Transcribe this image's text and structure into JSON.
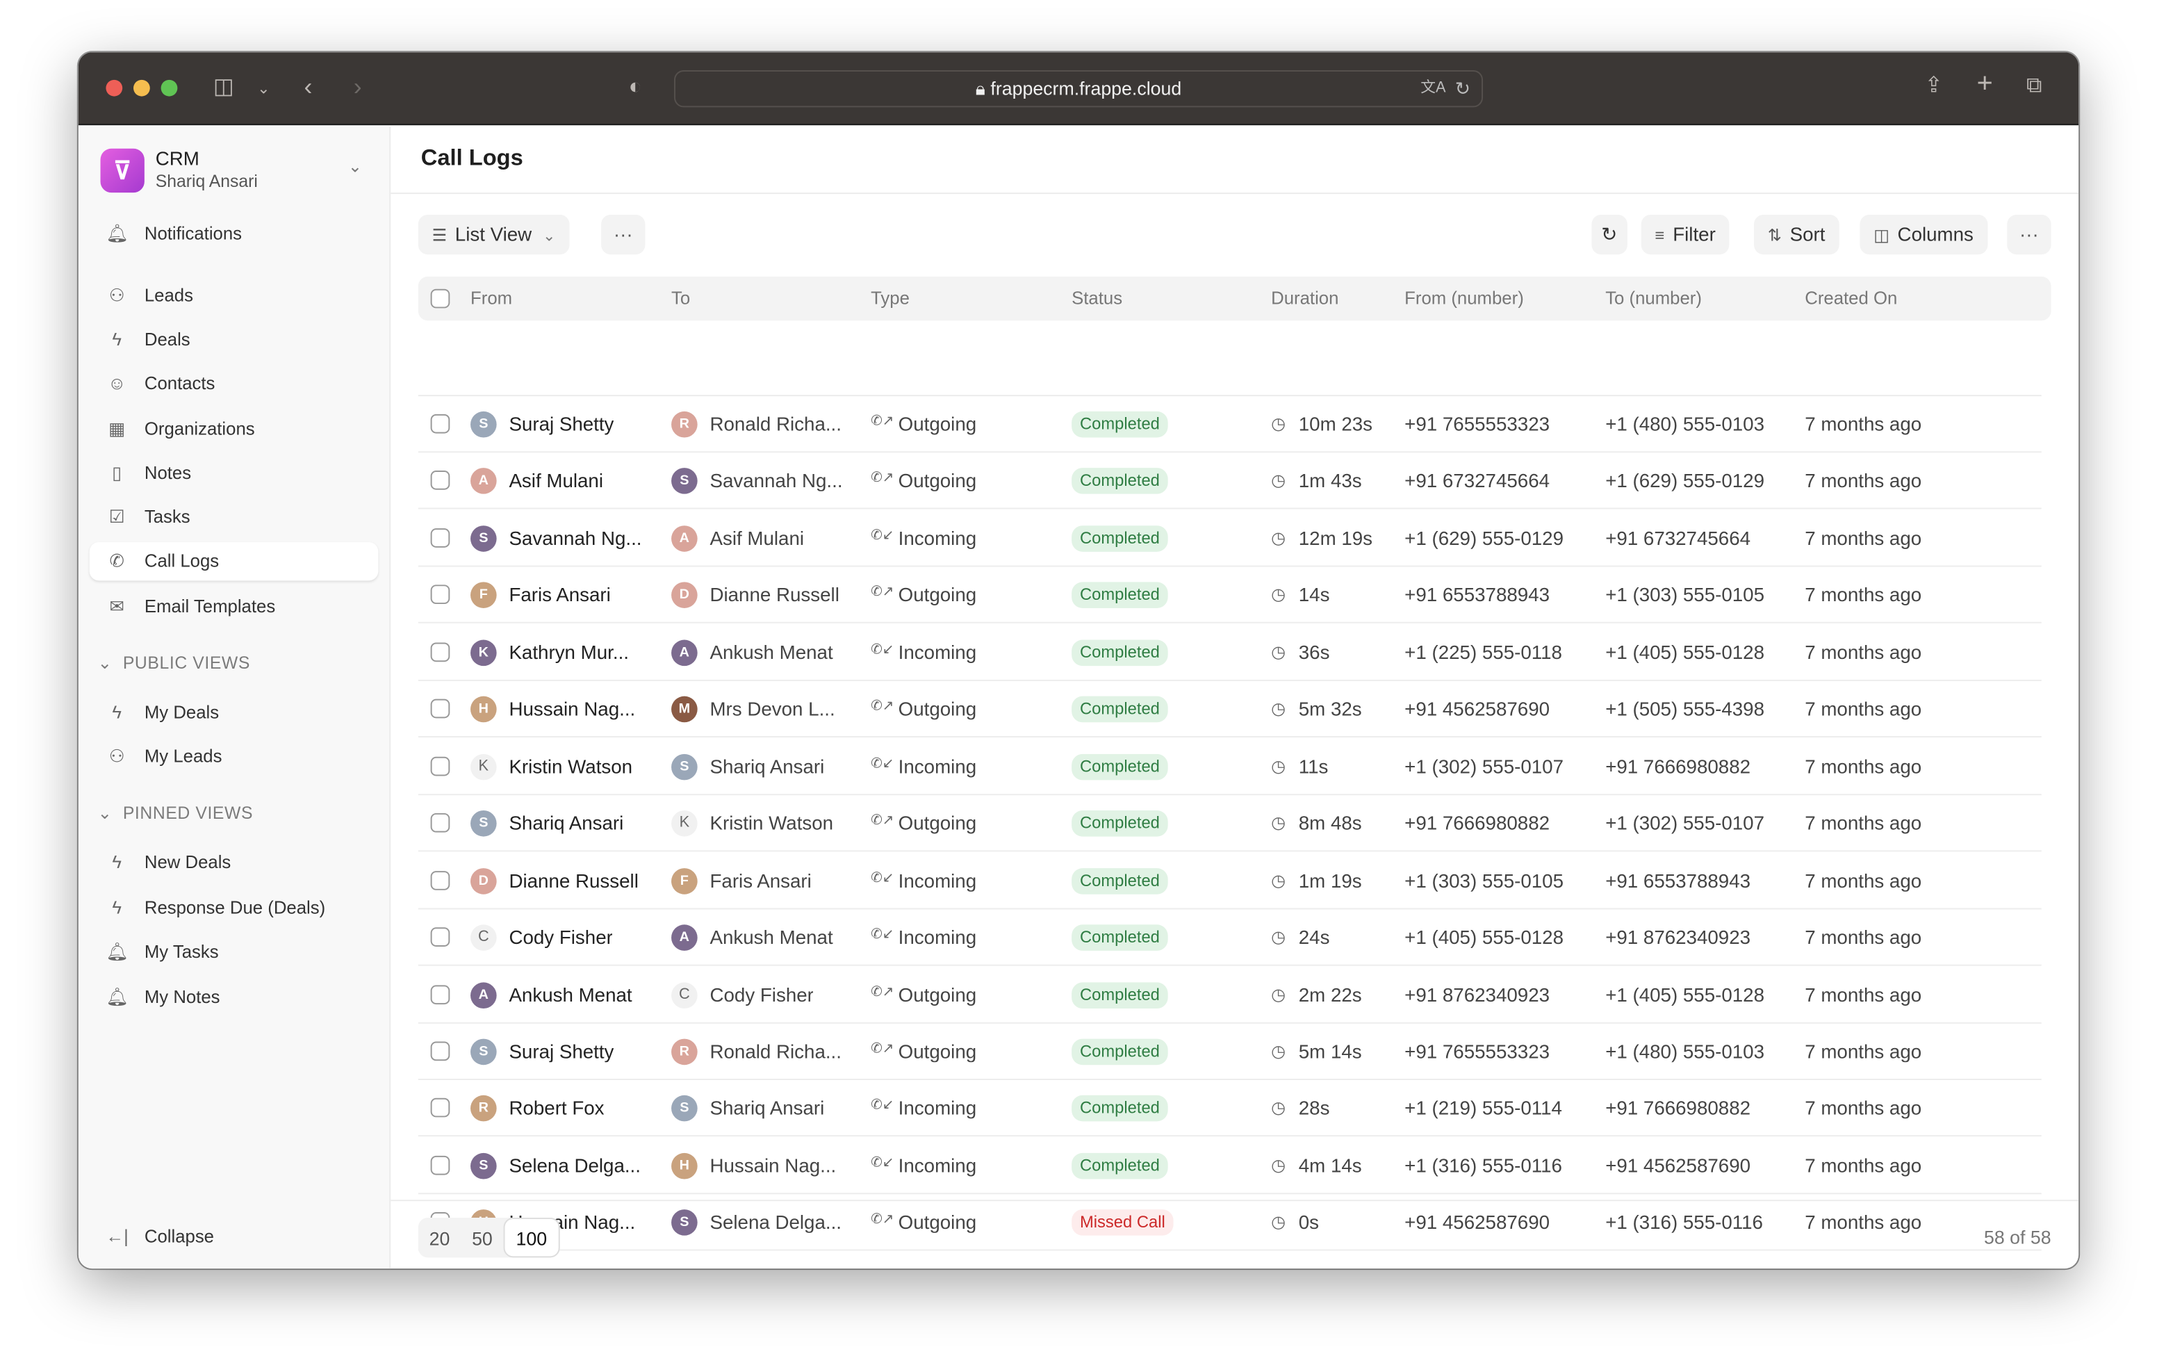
{
  "browser": {
    "url": "frappecrm.frappe.cloud"
  },
  "sidebar": {
    "app": "CRM",
    "user": "Shariq Ansari",
    "items": [
      {
        "label": "Notifications",
        "icon": "bell-icon"
      },
      {
        "label": "Leads",
        "icon": "users-icon"
      },
      {
        "label": "Deals",
        "icon": "deals-icon"
      },
      {
        "label": "Contacts",
        "icon": "contact-icon"
      },
      {
        "label": "Organizations",
        "icon": "building-icon"
      },
      {
        "label": "Notes",
        "icon": "file-icon"
      },
      {
        "label": "Tasks",
        "icon": "check-square-icon"
      },
      {
        "label": "Call Logs",
        "icon": "phone-icon",
        "active": true
      },
      {
        "label": "Email Templates",
        "icon": "mail-icon"
      }
    ],
    "public_views_label": "PUBLIC VIEWS",
    "public_views": [
      {
        "label": "My Deals",
        "icon": "deals-icon"
      },
      {
        "label": "My Leads",
        "icon": "users-icon"
      }
    ],
    "pinned_views_label": "PINNED VIEWS",
    "pinned_views": [
      {
        "label": "New Deals",
        "icon": "deals-icon"
      },
      {
        "label": "Response Due (Deals)",
        "icon": "deals-icon"
      },
      {
        "label": "My Tasks",
        "icon": "bell-icon"
      },
      {
        "label": "My Notes",
        "icon": "bell-icon"
      }
    ],
    "collapse": "Collapse"
  },
  "main": {
    "title": "Call Logs",
    "toolbar": {
      "view": "List View",
      "filter": "Filter",
      "sort": "Sort",
      "columns": "Columns"
    },
    "columns": [
      "From",
      "To",
      "Type",
      "Status",
      "Duration",
      "From (number)",
      "To (number)",
      "Created On"
    ],
    "rows": [
      [
        "Suraj Shetty",
        "Ronald Richa...",
        "Outgoing",
        "Completed",
        "10m 23s",
        "+91 7655553323",
        "+1 (480) 555-0103",
        "7 months ago"
      ],
      [
        "Asif Mulani",
        "Savannah Ng...",
        "Outgoing",
        "Completed",
        "1m 43s",
        "+91 6732745664",
        "+1 (629) 555-0129",
        "7 months ago"
      ],
      [
        "Savannah Ng...",
        "Asif Mulani",
        "Incoming",
        "Completed",
        "12m 19s",
        "+1 (629) 555-0129",
        "+91 6732745664",
        "7 months ago"
      ],
      [
        "Faris Ansari",
        "Dianne Russell",
        "Outgoing",
        "Completed",
        "14s",
        "+91 6553788943",
        "+1 (303) 555-0105",
        "7 months ago"
      ],
      [
        "Kathryn Mur...",
        "Ankush Menat",
        "Incoming",
        "Completed",
        "36s",
        "+1 (225) 555-0118",
        "+1 (405) 555-0128",
        "7 months ago"
      ],
      [
        "Hussain Nag...",
        "Mrs Devon L...",
        "Outgoing",
        "Completed",
        "5m 32s",
        "+91 4562587690",
        "+1 (505) 555-4398",
        "7 months ago"
      ],
      [
        "Kristin Watson",
        "Shariq Ansari",
        "Incoming",
        "Completed",
        "11s",
        "+1 (302) 555-0107",
        "+91 7666980882",
        "7 months ago"
      ],
      [
        "Shariq Ansari",
        "Kristin Watson",
        "Outgoing",
        "Completed",
        "8m 48s",
        "+91 7666980882",
        "+1 (302) 555-0107",
        "7 months ago"
      ],
      [
        "Dianne Russell",
        "Faris Ansari",
        "Incoming",
        "Completed",
        "1m 19s",
        "+1 (303) 555-0105",
        "+91 6553788943",
        "7 months ago"
      ],
      [
        "Cody Fisher",
        "Ankush Menat",
        "Incoming",
        "Completed",
        "24s",
        "+1 (405) 555-0128",
        "+91 8762340923",
        "7 months ago"
      ],
      [
        "Ankush Menat",
        "Cody Fisher",
        "Outgoing",
        "Completed",
        "2m 22s",
        "+91 8762340923",
        "+1 (405) 555-0128",
        "7 months ago"
      ],
      [
        "Suraj Shetty",
        "Ronald Richa...",
        "Outgoing",
        "Completed",
        "5m 14s",
        "+91 7655553323",
        "+1 (480) 555-0103",
        "7 months ago"
      ],
      [
        "Robert Fox",
        "Shariq Ansari",
        "Incoming",
        "Completed",
        "28s",
        "+1 (219) 555-0114",
        "+91 7666980882",
        "7 months ago"
      ],
      [
        "Selena Delga...",
        "Hussain Nag...",
        "Incoming",
        "Completed",
        "4m 14s",
        "+1 (316) 555-0116",
        "+91 4562587690",
        "7 months ago"
      ],
      [
        "Hussain Nag...",
        "Selena Delga...",
        "Outgoing",
        "Missed Call",
        "0s",
        "+91 4562587690",
        "+1 (316) 555-0116",
        "7 months ago"
      ]
    ],
    "letter_avatars": {
      "Kristin Watson": "K",
      "Cody Fisher": "C"
    },
    "status_colors": {
      "Completed": {
        "bg": "#e1f3e5",
        "fg": "#2f7d43"
      },
      "Missed Call": {
        "bg": "#fdecec",
        "fg": "#cc2929"
      }
    },
    "pagination": {
      "options": [
        "20",
        "50",
        "100"
      ],
      "selected": "100",
      "count": "58 of 58"
    }
  }
}
